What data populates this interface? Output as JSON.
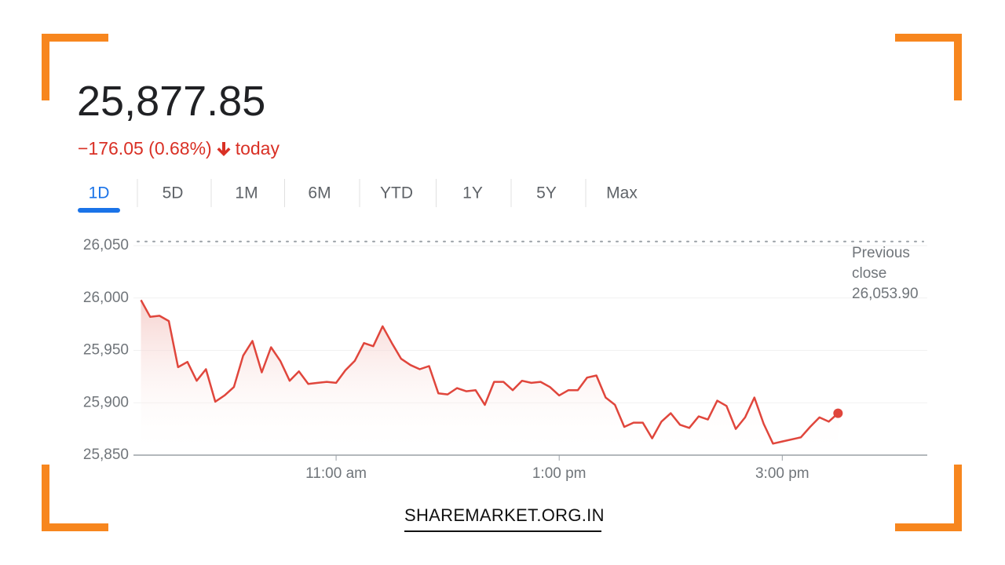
{
  "header": {
    "price": "25,877.85",
    "change": "−176.05 (0.68%)",
    "period": "today"
  },
  "tabs": [
    "1D",
    "5D",
    "1M",
    "6M",
    "YTD",
    "1Y",
    "5Y",
    "Max"
  ],
  "active_tab": 0,
  "watermark": "SHAREMARKET.ORG.IN",
  "chart_data": {
    "type": "line",
    "x": [
      555,
      560,
      565,
      570,
      575,
      580,
      585,
      590,
      595,
      600,
      605,
      610,
      615,
      620,
      625,
      630,
      635,
      640,
      645,
      650,
      655,
      660,
      665,
      670,
      675,
      680,
      685,
      690,
      695,
      700,
      705,
      710,
      715,
      720,
      725,
      730,
      735,
      740,
      745,
      750,
      755,
      760,
      765,
      770,
      775,
      780,
      785,
      790,
      795,
      800,
      805,
      810,
      815,
      820,
      825,
      830,
      835,
      840,
      845,
      850,
      855,
      860,
      865,
      870,
      875,
      880,
      885,
      890,
      895,
      900,
      910,
      915,
      920,
      925,
      930
    ],
    "series": [
      {
        "color": "#e0463c",
        "values": [
          25998,
          25982,
          25983,
          25978,
          25934,
          25939,
          25921,
          25932,
          25901,
          25907,
          25915,
          25945,
          25959,
          25929,
          25953,
          25940,
          25921,
          25930,
          25918,
          25919,
          25920,
          25919,
          25931,
          25940,
          25957,
          25954,
          25973,
          25957,
          25942,
          25936,
          25932,
          25935,
          25909,
          25908,
          25914,
          25911,
          25912,
          25898,
          25920,
          25920,
          25912,
          25921,
          25919,
          25920,
          25915,
          25907,
          25912,
          25912,
          25924,
          25926,
          25905,
          25898,
          25877,
          25881,
          25881,
          25866,
          25882,
          25890,
          25879,
          25876,
          25887,
          25884,
          25902,
          25897,
          25875,
          25886,
          25905,
          25880,
          25861,
          25863,
          25867,
          25877,
          25886,
          25882,
          25890
        ]
      }
    ],
    "xlim": [
      551,
      978
    ],
    "xticks": [
      {
        "value": 660,
        "label": "11:00 am"
      },
      {
        "value": 780,
        "label": "1:00 pm"
      },
      {
        "value": 900,
        "label": "3:00 pm"
      }
    ],
    "ylim": [
      25850,
      26060
    ],
    "yticks": [
      {
        "value": 25850,
        "label": "25,850"
      },
      {
        "value": 25900,
        "label": "25,900"
      },
      {
        "value": 25950,
        "label": "25,950"
      },
      {
        "value": 26000,
        "label": "26,000"
      },
      {
        "value": 26050,
        "label": "26,050"
      }
    ],
    "grid": true,
    "reference_line": {
      "name": "Previous close",
      "value": 26053.9,
      "value_label": "26,053.90"
    }
  }
}
